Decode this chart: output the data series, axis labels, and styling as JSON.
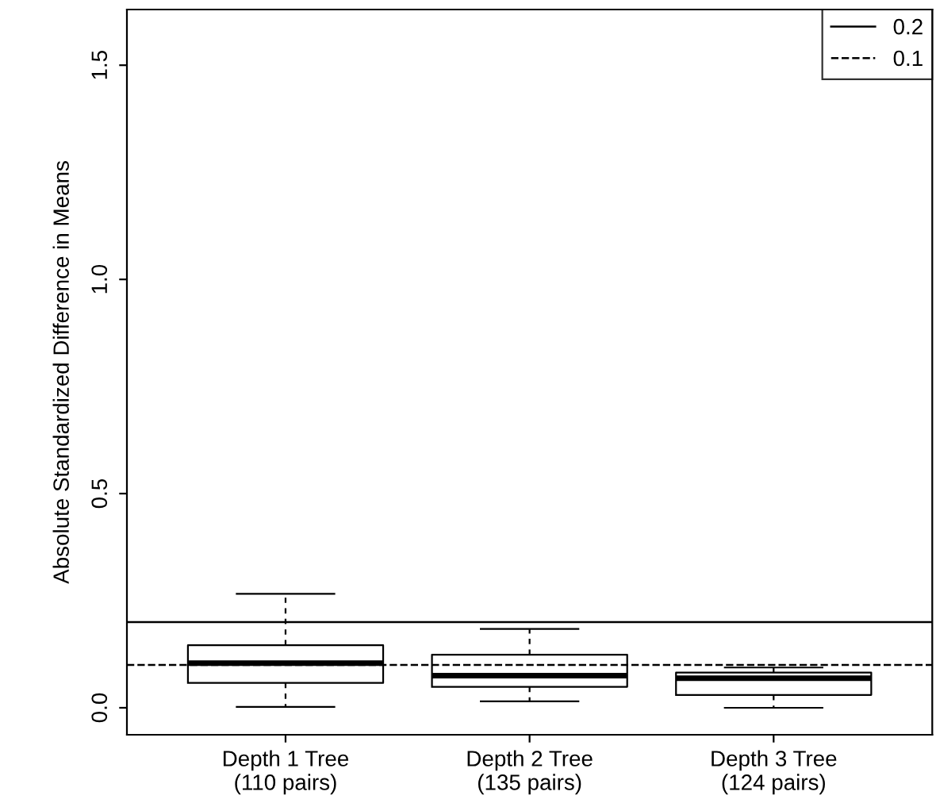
{
  "chart_data": {
    "type": "box",
    "ylabel": "Absolute Standardized Difference in Means",
    "categories": [
      "Depth 1 Tree\n(110 pairs)",
      "Depth 2 Tree\n(135 pairs)",
      "Depth 3 Tree\n(124 pairs)"
    ],
    "boxes": [
      {
        "low": 0.002,
        "q1": 0.058,
        "median": 0.104,
        "q3": 0.146,
        "high": 0.266
      },
      {
        "low": 0.015,
        "q1": 0.049,
        "median": 0.075,
        "q3": 0.124,
        "high": 0.184
      },
      {
        "low": 0.0,
        "q1": 0.03,
        "median": 0.069,
        "q3": 0.082,
        "high": 0.094
      }
    ],
    "ylim": [
      -0.063,
      1.63
    ],
    "yticks": [
      {
        "value": 0,
        "label": "0.0"
      },
      {
        "value": 0.5,
        "label": "0.5"
      },
      {
        "value": 1.0,
        "label": "1.0"
      },
      {
        "value": 1.5,
        "label": "1.5"
      }
    ],
    "ref_lines": [
      {
        "axis": "y",
        "value": 0.2,
        "label": "0.2",
        "color": "#000000",
        "line_style": "solid"
      },
      {
        "axis": "y",
        "value": 0.1,
        "label": "0.1",
        "color": "#000000",
        "line_style": "dashed"
      }
    ],
    "grid": false,
    "legend": "top right"
  }
}
